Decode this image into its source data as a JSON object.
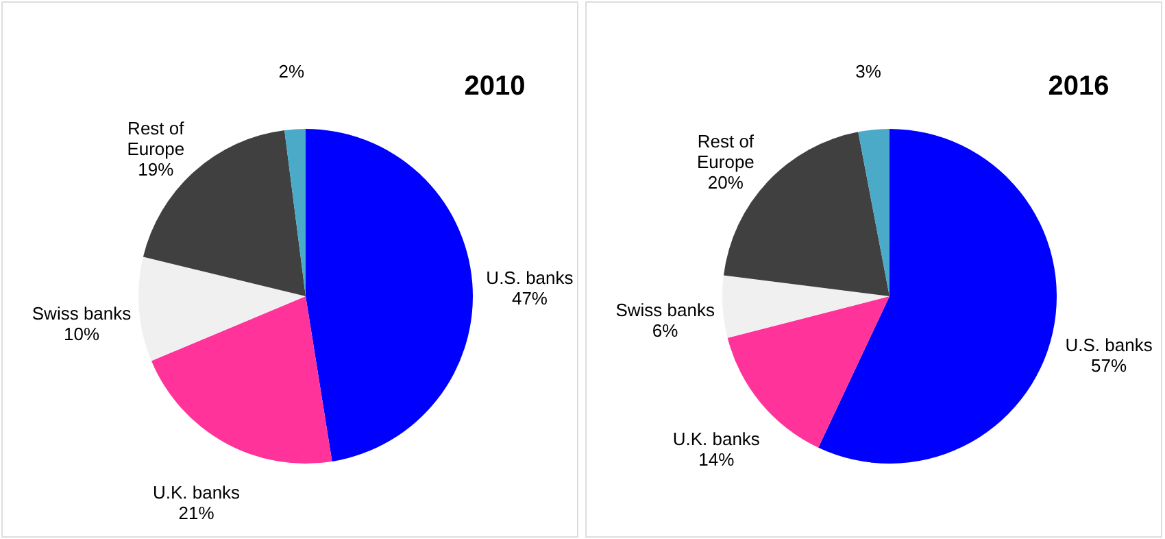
{
  "chart_data": [
    {
      "type": "pie",
      "title": "2010",
      "categories": [
        "U.S. banks",
        "U.K. banks",
        "Swiss banks",
        "Rest of Europe",
        null
      ],
      "values": [
        47,
        21,
        10,
        19,
        2
      ],
      "colors": [
        "#0000ff",
        "#ff3399",
        "#f0f0f0",
        "#404040",
        "#4aaac8"
      ],
      "value_labels": [
        "47%",
        "21%",
        "10%",
        "19%",
        "2%"
      ]
    },
    {
      "type": "pie",
      "title": "2016",
      "categories": [
        "U.S. banks",
        "U.K. banks",
        "Swiss banks",
        "Rest of Europe",
        null
      ],
      "values": [
        57,
        14,
        6,
        20,
        3
      ],
      "colors": [
        "#0000ff",
        "#ff3399",
        "#f0f0f0",
        "#404040",
        "#4aaac8"
      ],
      "value_labels": [
        "57%",
        "14%",
        "6%",
        "20%",
        "3%"
      ]
    }
  ]
}
